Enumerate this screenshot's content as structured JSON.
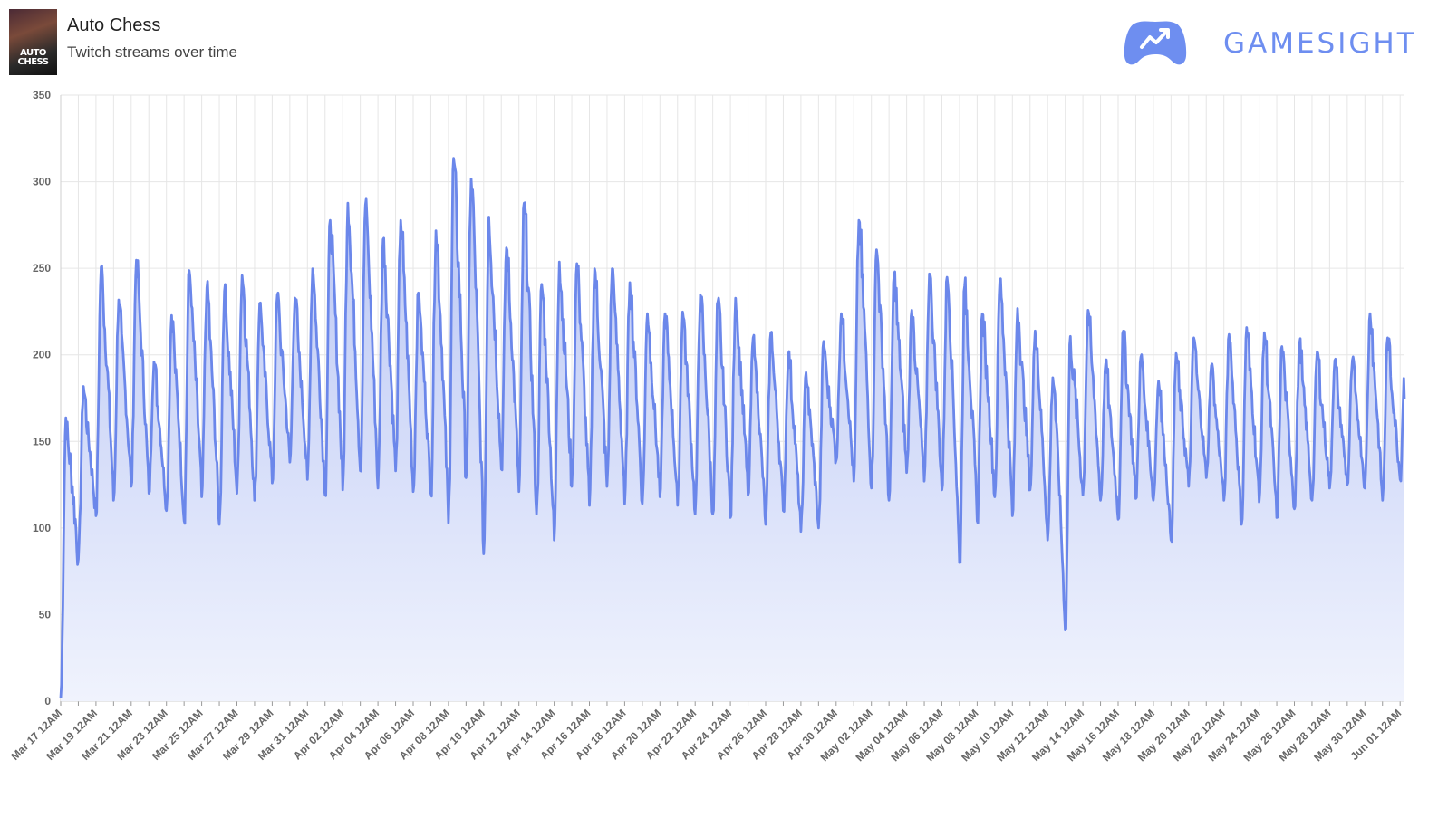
{
  "header": {
    "title": "Auto Chess",
    "subtitle": "Twitch streams over time",
    "thumbnail_text": "AUTO CHESS",
    "brand": "GAMESIGHT",
    "brand_icon": "gamepad-trend-icon"
  },
  "colors": {
    "line": "#6b87ea",
    "fill_top": "#b7c4f4",
    "fill_bottom": "#f0f3fd",
    "brand": "#6e8ef0"
  },
  "chart_data": {
    "type": "area",
    "title": "",
    "xlabel": "",
    "ylabel": "",
    "ylim": [
      0,
      350
    ],
    "y_ticks": [
      0,
      50,
      100,
      150,
      200,
      250,
      300,
      350
    ],
    "x_ticks": [
      "Mar 17 12AM",
      "Mar 19 12AM",
      "Mar 21 12AM",
      "Mar 23 12AM",
      "Mar 25 12AM",
      "Mar 27 12AM",
      "Mar 29 12AM",
      "Mar 31 12AM",
      "Apr 02 12AM",
      "Apr 04 12AM",
      "Apr 06 12AM",
      "Apr 08 12AM",
      "Apr 10 12AM",
      "Apr 12 12AM",
      "Apr 14 12AM",
      "Apr 16 12AM",
      "Apr 18 12AM",
      "Apr 20 12AM",
      "Apr 22 12AM",
      "Apr 24 12AM",
      "Apr 26 12AM",
      "Apr 28 12AM",
      "Apr 30 12AM",
      "May 02 12AM",
      "May 04 12AM",
      "May 06 12AM",
      "May 08 12AM",
      "May 10 12AM",
      "May 12 12AM",
      "May 14 12AM",
      "May 16 12AM",
      "May 18 12AM",
      "May 20 12AM",
      "May 22 12AM",
      "May 24 12AM",
      "May 26 12AM",
      "May 28 12AM",
      "May 30 12AM",
      "Jun 01 12AM"
    ],
    "grid": true,
    "legend": "none",
    "series": [
      {
        "daily": [
          {
            "date": "Mar 17",
            "peak": 164,
            "low": 2
          },
          {
            "date": "Mar 18",
            "peak": 182,
            "low": 82
          },
          {
            "date": "Mar 19",
            "peak": 251,
            "low": 107
          },
          {
            "date": "Mar 20",
            "peak": 232,
            "low": 116
          },
          {
            "date": "Mar 21",
            "peak": 255,
            "low": 124
          },
          {
            "date": "Mar 22",
            "peak": 196,
            "low": 120
          },
          {
            "date": "Mar 23",
            "peak": 223,
            "low": 110
          },
          {
            "date": "Mar 24",
            "peak": 249,
            "low": 104
          },
          {
            "date": "Mar 25",
            "peak": 239,
            "low": 118
          },
          {
            "date": "Mar 26",
            "peak": 237,
            "low": 102
          },
          {
            "date": "Mar 27",
            "peak": 246,
            "low": 120
          },
          {
            "date": "Mar 28",
            "peak": 230,
            "low": 116
          },
          {
            "date": "Mar 29",
            "peak": 235,
            "low": 126
          },
          {
            "date": "Mar 30",
            "peak": 233,
            "low": 138
          },
          {
            "date": "Mar 31",
            "peak": 250,
            "low": 128
          },
          {
            "date": "Apr 01",
            "peak": 278,
            "low": 119
          },
          {
            "date": "Apr 02",
            "peak": 288,
            "low": 122
          },
          {
            "date": "Apr 03",
            "peak": 287,
            "low": 133
          },
          {
            "date": "Apr 04",
            "peak": 267,
            "low": 123
          },
          {
            "date": "Apr 05",
            "peak": 278,
            "low": 133
          },
          {
            "date": "Apr 06",
            "peak": 236,
            "low": 121
          },
          {
            "date": "Apr 07",
            "peak": 272,
            "low": 120
          },
          {
            "date": "Apr 08",
            "peak": 314,
            "low": 103
          },
          {
            "date": "Apr 09",
            "peak": 302,
            "low": 129
          },
          {
            "date": "Apr 10",
            "peak": 280,
            "low": 85
          },
          {
            "date": "Apr 11",
            "peak": 262,
            "low": 134
          },
          {
            "date": "Apr 12",
            "peak": 288,
            "low": 121
          },
          {
            "date": "Apr 13",
            "peak": 241,
            "low": 108
          },
          {
            "date": "Apr 14",
            "peak": 254,
            "low": 93
          },
          {
            "date": "Apr 15",
            "peak": 253,
            "low": 124
          },
          {
            "date": "Apr 16",
            "peak": 250,
            "low": 113
          },
          {
            "date": "Apr 17",
            "peak": 250,
            "low": 124
          },
          {
            "date": "Apr 18",
            "peak": 242,
            "low": 114
          },
          {
            "date": "Apr 19",
            "peak": 224,
            "low": 114
          },
          {
            "date": "Apr 20",
            "peak": 224,
            "low": 118
          },
          {
            "date": "Apr 21",
            "peak": 225,
            "low": 113
          },
          {
            "date": "Apr 22",
            "peak": 235,
            "low": 108
          },
          {
            "date": "Apr 23",
            "peak": 231,
            "low": 108
          },
          {
            "date": "Apr 24",
            "peak": 233,
            "low": 106
          },
          {
            "date": "Apr 25",
            "peak": 210,
            "low": 119
          },
          {
            "date": "Apr 26",
            "peak": 213,
            "low": 102
          },
          {
            "date": "Apr 27",
            "peak": 201,
            "low": 110
          },
          {
            "date": "Apr 28",
            "peak": 190,
            "low": 98
          },
          {
            "date": "Apr 29",
            "peak": 208,
            "low": 100
          },
          {
            "date": "Apr 30",
            "peak": 224,
            "low": 139
          },
          {
            "date": "May 01",
            "peak": 278,
            "low": 127
          },
          {
            "date": "May 02",
            "peak": 261,
            "low": 123
          },
          {
            "date": "May 03",
            "peak": 247,
            "low": 116
          },
          {
            "date": "May 04",
            "peak": 226,
            "low": 132
          },
          {
            "date": "May 05",
            "peak": 247,
            "low": 127
          },
          {
            "date": "May 06",
            "peak": 245,
            "low": 122
          },
          {
            "date": "May 07",
            "peak": 240,
            "low": 80
          },
          {
            "date": "May 08",
            "peak": 224,
            "low": 104
          },
          {
            "date": "May 09",
            "peak": 244,
            "low": 118
          },
          {
            "date": "May 10",
            "peak": 227,
            "low": 107
          },
          {
            "date": "May 11",
            "peak": 214,
            "low": 122
          },
          {
            "date": "May 12",
            "peak": 187,
            "low": 93
          },
          {
            "date": "May 13",
            "peak": 211,
            "low": 41
          },
          {
            "date": "May 14",
            "peak": 226,
            "low": 119
          },
          {
            "date": "May 15",
            "peak": 195,
            "low": 116
          },
          {
            "date": "May 16",
            "peak": 214,
            "low": 105
          },
          {
            "date": "May 17",
            "peak": 199,
            "low": 117
          },
          {
            "date": "May 18",
            "peak": 185,
            "low": 116
          },
          {
            "date": "May 19",
            "peak": 201,
            "low": 93
          },
          {
            "date": "May 20",
            "peak": 210,
            "low": 124
          },
          {
            "date": "May 21",
            "peak": 194,
            "low": 129
          },
          {
            "date": "May 22",
            "peak": 212,
            "low": 116
          },
          {
            "date": "May 23",
            "peak": 216,
            "low": 102
          },
          {
            "date": "May 24",
            "peak": 213,
            "low": 115
          },
          {
            "date": "May 25",
            "peak": 205,
            "low": 106
          },
          {
            "date": "May 26",
            "peak": 207,
            "low": 111
          },
          {
            "date": "May 27",
            "peak": 202,
            "low": 116
          },
          {
            "date": "May 28",
            "peak": 197,
            "low": 123
          },
          {
            "date": "May 29",
            "peak": 197,
            "low": 125
          },
          {
            "date": "May 30",
            "peak": 224,
            "low": 123
          },
          {
            "date": "May 31",
            "peak": 210,
            "low": 116
          },
          {
            "date": "Jun 01",
            "peak": 205,
            "low": 128
          }
        ]
      }
    ]
  }
}
